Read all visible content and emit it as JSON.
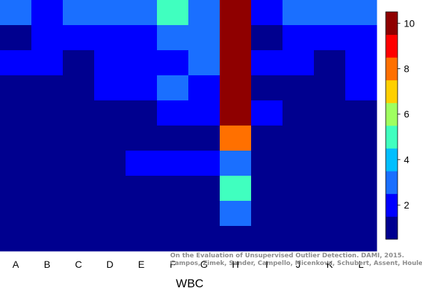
{
  "chart_data": {
    "type": "heatmap",
    "xlabel": "WBC",
    "columns": [
      "A",
      "B",
      "C",
      "D",
      "E",
      "F",
      "G",
      "H",
      "I",
      "J",
      "K",
      "L"
    ],
    "colorbar": {
      "ticks": [
        2,
        4,
        6,
        8,
        10
      ],
      "levels": 10,
      "vmin": 0.5,
      "vmax": 10.5,
      "colors": [
        "#00008f",
        "#0000ff",
        "#1a6fff",
        "#00bfff",
        "#40ffbf",
        "#9fff60",
        "#ffd000",
        "#ff7000",
        "#ff0000",
        "#8f0000"
      ]
    },
    "grid": [
      [
        2,
        1,
        2,
        2,
        2,
        4,
        2,
        10,
        1,
        2,
        2,
        2
      ],
      [
        0,
        1,
        1,
        1,
        1,
        2,
        2,
        10,
        0,
        1,
        1,
        1
      ],
      [
        1,
        1,
        0,
        1,
        1,
        1,
        2,
        10,
        1,
        1,
        0,
        1
      ],
      [
        0,
        0,
        0,
        1,
        1,
        2,
        1,
        10,
        0,
        0,
        0,
        1
      ],
      [
        0,
        0,
        0,
        0,
        0,
        1,
        1,
        10,
        1,
        0,
        0,
        0
      ],
      [
        0,
        0,
        0,
        0,
        0,
        0,
        0,
        7,
        0,
        0,
        0,
        0
      ],
      [
        0,
        0,
        0,
        0,
        1,
        1,
        1,
        2,
        0,
        0,
        0,
        0
      ],
      [
        0,
        0,
        0,
        0,
        0,
        0,
        0,
        4,
        0,
        0,
        0,
        0
      ],
      [
        0,
        0,
        0,
        0,
        0,
        0,
        0,
        2,
        0,
        0,
        0,
        0
      ],
      [
        0,
        0,
        0,
        0,
        0,
        0,
        0,
        0,
        0,
        0,
        0,
        0
      ]
    ]
  },
  "credit": {
    "line1": "On the Evaluation of Unsupervised Outlier Detection. DAMI, 2015.",
    "line2": "Campos, Zimek, Sander, Campello, Micenkova, Schubert, Assent, Houle"
  }
}
